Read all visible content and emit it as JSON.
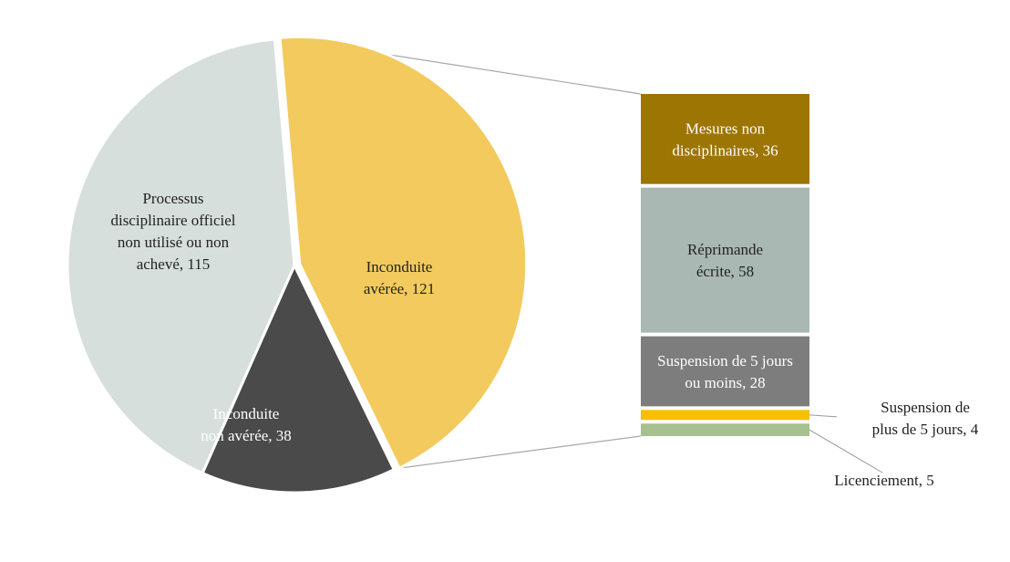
{
  "chart_data": {
    "type": "pie",
    "pie": {
      "slices": [
        {
          "label_lines": [
            "Inconduite",
            "avérée, 121"
          ],
          "name": "Inconduite avérée",
          "value": 121,
          "color": "#F3CA5E",
          "label_color": "#222222"
        },
        {
          "label_lines": [
            "Inconduite",
            "non avérée, 38"
          ],
          "name": "Inconduite non avérée",
          "value": 38,
          "color": "#4A4A4A",
          "label_color": "#ffffff"
        },
        {
          "label_lines": [
            "Processus",
            "disciplinaire officiel",
            "non utilisé ou non",
            "achevé, 115"
          ],
          "name": "Processus disciplinaire officiel non utilisé ou non achevé",
          "value": 115,
          "color": "#D6DFDB",
          "label_color": "#222222"
        }
      ],
      "exploded_slice": "Inconduite avérée"
    },
    "breakdown": {
      "type": "stacked-bar",
      "segments": [
        {
          "label_lines": [
            "Mesures non",
            "disciplinaires, 36"
          ],
          "name": "Mesures non disciplinaires",
          "value": 36,
          "color": "#9D7503",
          "label_color": "#ffffff",
          "label_position": "inside"
        },
        {
          "label_lines": [
            "Réprimande",
            "écrite, 58"
          ],
          "name": "Réprimande écrite",
          "value": 58,
          "color": "#A9B8B2",
          "label_color": "#222222",
          "label_position": "inside"
        },
        {
          "label_lines": [
            "Suspension de 5 jours",
            "ou moins, 28"
          ],
          "name": "Suspension de 5 jours ou moins",
          "value": 28,
          "color": "#7D7D7D",
          "label_color": "#ffffff",
          "label_position": "inside"
        },
        {
          "label_lines": [
            "Suspension de",
            "plus de 5 jours, 4"
          ],
          "name": "Suspension de plus de 5 jours",
          "value": 4,
          "color": "#F6C000",
          "label_color": "#222222",
          "label_position": "outside-right"
        },
        {
          "label_lines": [
            "Licenciement, 5"
          ],
          "name": "Licenciement",
          "value": 5,
          "color": "#A6C08F",
          "label_color": "#222222",
          "label_position": "outside-below"
        }
      ]
    },
    "title": "",
    "legend": "none"
  }
}
